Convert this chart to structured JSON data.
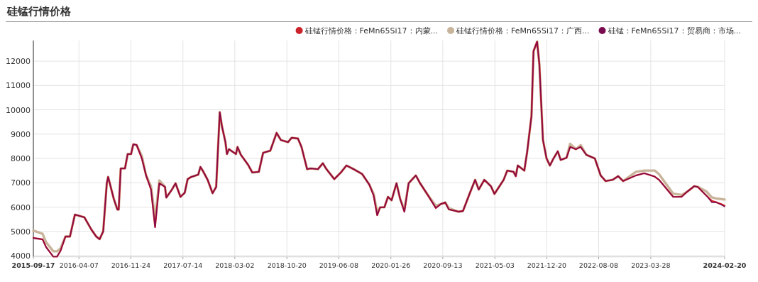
{
  "chart_data": {
    "type": "line",
    "title": "硅锰行情价格",
    "x": [
      "2015-09-17",
      "2015-10-28",
      "2015-11-13",
      "2015-12-15",
      "2015-12-31",
      "2016-01-16",
      "2016-02-07",
      "2016-02-27",
      "2016-03-20",
      "2016-05-01",
      "2016-06-01",
      "2016-06-23",
      "2016-07-08",
      "2016-07-24",
      "2016-08-09",
      "2016-08-15",
      "2016-09-09",
      "2016-09-25",
      "2016-10-01",
      "2016-10-10",
      "2016-10-29",
      "2016-11-10",
      "2016-11-25",
      "2016-12-05",
      "2016-12-20",
      "2017-01-12",
      "2017-01-31",
      "2017-02-22",
      "2017-03-12",
      "2017-03-31",
      "2017-04-25",
      "2017-05-01",
      "2017-05-26",
      "2017-06-11",
      "2017-07-03",
      "2017-07-22",
      "2017-08-04",
      "2017-08-20",
      "2017-09-20",
      "2017-09-30",
      "2017-10-10",
      "2017-11-01",
      "2017-11-23",
      "2017-12-09",
      "2017-12-25",
      "2018-01-04",
      "2018-01-19",
      "2018-01-26",
      "2018-02-04",
      "2018-03-07",
      "2018-03-14",
      "2018-03-29",
      "2018-04-30",
      "2018-05-19",
      "2018-06-17",
      "2018-07-06",
      "2018-08-07",
      "2018-09-04",
      "2018-09-23",
      "2018-10-25",
      "2018-11-10",
      "2018-12-08",
      "2018-12-24",
      "2019-01-18",
      "2019-02-03",
      "2019-03-07",
      "2019-03-29",
      "2019-04-14",
      "2019-05-19",
      "2019-06-17",
      "2019-07-12",
      "2019-08-13",
      "2019-09-20",
      "2019-10-22",
      "2019-11-10",
      "2019-11-26",
      "2019-12-09",
      "2019-12-28",
      "2020-01-13",
      "2020-01-29",
      "2020-02-20",
      "2020-03-07",
      "2020-03-26",
      "2020-04-14",
      "2020-05-16",
      "2020-06-04",
      "2020-07-03",
      "2020-08-13",
      "2020-09-05",
      "2020-09-24",
      "2020-10-10",
      "2020-11-23",
      "2020-12-12",
      "2021-01-10",
      "2021-02-04",
      "2021-02-20",
      "2021-03-17",
      "2021-04-15",
      "2021-05-01",
      "2021-06-11",
      "2021-06-27",
      "2021-07-25",
      "2021-08-04",
      "2021-08-13",
      "2021-09-11",
      "2021-09-24",
      "2021-10-13",
      "2021-10-22",
      "2021-11-07",
      "2021-11-17",
      "2021-12-03",
      "2021-12-19",
      "2022-01-03",
      "2022-01-19",
      "2022-02-07",
      "2022-02-20",
      "2022-03-18",
      "2022-04-03",
      "2022-04-29",
      "2022-05-20",
      "2022-06-14",
      "2022-07-22",
      "2022-08-17",
      "2022-09-08",
      "2022-10-09",
      "2022-11-03",
      "2022-11-25",
      "2023-01-21",
      "2023-02-27",
      "2023-04-15",
      "2023-05-04",
      "2023-07-06",
      "2023-08-12",
      "2023-09-06",
      "2023-10-08",
      "2023-10-23",
      "2023-11-30",
      "2023-12-25",
      "2024-01-16",
      "2024-02-10",
      "2024-02-20"
    ],
    "series": [
      {
        "name": "硅锰行情价格：FeMn65Si17：内蒙...",
        "color": "#cc2229",
        "values": [
          4730,
          4670,
          4350,
          3960,
          3960,
          4200,
          4790,
          4790,
          5690,
          5580,
          5080,
          4790,
          4680,
          5000,
          6980,
          7240,
          6340,
          5900,
          5900,
          7590,
          7590,
          8180,
          8180,
          8580,
          8550,
          8000,
          7300,
          6720,
          5170,
          6980,
          6830,
          6390,
          6720,
          6980,
          6420,
          6590,
          7150,
          7240,
          7330,
          7650,
          7500,
          7120,
          6570,
          6830,
          9900,
          9310,
          8680,
          8180,
          8380,
          8180,
          8470,
          8150,
          7740,
          7420,
          7450,
          8230,
          8320,
          9050,
          8760,
          8670,
          8850,
          8820,
          8470,
          7560,
          7590,
          7560,
          7800,
          7560,
          7150,
          7420,
          7710,
          7560,
          7360,
          6920,
          6480,
          5660,
          5990,
          5990,
          6420,
          6280,
          6980,
          6340,
          5810,
          6980,
          7300,
          6980,
          6570,
          5960,
          6130,
          6190,
          5900,
          5810,
          5840,
          6540,
          7120,
          6720,
          7120,
          6860,
          6540,
          7120,
          7500,
          7450,
          7270,
          7710,
          7500,
          8290,
          9750,
          12410,
          12800,
          11880,
          8760,
          8000,
          7710,
          8000,
          8290,
          7940,
          8030,
          8470,
          8380,
          8470,
          8150,
          8000,
          7300,
          7070,
          7120,
          7270,
          7070,
          7300,
          7390,
          7250,
          7120,
          6420,
          6420,
          6630,
          6860,
          6830,
          6480,
          6250,
          6190,
          6100,
          6050
        ]
      },
      {
        "name": "硅锰行情价格：FeMn65Si17：广西...",
        "color": "#c8b49a",
        "values": [
          5030,
          4900,
          4550,
          4180,
          4180,
          4300,
          4790,
          4790,
          5690,
          5580,
          5080,
          4790,
          4680,
          5000,
          6980,
          7240,
          6340,
          5900,
          5900,
          7590,
          7590,
          8180,
          8180,
          8580,
          8550,
          8100,
          7300,
          6850,
          5500,
          7100,
          6830,
          6390,
          6720,
          6980,
          6420,
          6590,
          7150,
          7240,
          7330,
          7650,
          7500,
          7120,
          6570,
          6830,
          9900,
          9310,
          8680,
          8180,
          8380,
          8180,
          8470,
          8150,
          7740,
          7420,
          7450,
          8230,
          8320,
          9050,
          8760,
          8670,
          8850,
          8820,
          8470,
          7560,
          7590,
          7560,
          7800,
          7560,
          7150,
          7420,
          7710,
          7560,
          7360,
          6920,
          6550,
          5780,
          5990,
          5990,
          6420,
          6280,
          6980,
          6340,
          5900,
          6980,
          7300,
          6980,
          6570,
          6050,
          6130,
          6190,
          5950,
          5810,
          5840,
          6540,
          7120,
          6720,
          7120,
          6860,
          6540,
          7120,
          7500,
          7450,
          7270,
          7710,
          7500,
          8290,
          9750,
          12410,
          12800,
          11880,
          8760,
          8000,
          7710,
          8000,
          8290,
          7940,
          8030,
          8600,
          8380,
          8550,
          8150,
          8000,
          7300,
          7070,
          7120,
          7270,
          7070,
          7450,
          7500,
          7500,
          7350,
          6550,
          6500,
          6630,
          6860,
          6830,
          6650,
          6400,
          6350,
          6320,
          6310
        ]
      },
      {
        "name": "硅锰：FeMn65Si17：贸易商：市场...",
        "color": "#7a0a4e",
        "values": [
          4730,
          4670,
          4350,
          3960,
          3960,
          4200,
          4790,
          4790,
          5690,
          5580,
          5080,
          4790,
          4680,
          5000,
          6980,
          7240,
          6340,
          5900,
          5900,
          7590,
          7590,
          8180,
          8180,
          8580,
          8550,
          8000,
          7300,
          6720,
          5170,
          6980,
          6830,
          6390,
          6720,
          6980,
          6420,
          6590,
          7150,
          7240,
          7330,
          7650,
          7500,
          7120,
          6570,
          6830,
          9900,
          9310,
          8680,
          8180,
          8380,
          8180,
          8470,
          8150,
          7740,
          7420,
          7450,
          8230,
          8320,
          9050,
          8760,
          8670,
          8850,
          8820,
          8470,
          7560,
          7590,
          7560,
          7800,
          7560,
          7150,
          7420,
          7710,
          7560,
          7360,
          6920,
          6480,
          5660,
          5990,
          5990,
          6420,
          6280,
          6980,
          6340,
          5810,
          6980,
          7300,
          6980,
          6570,
          5960,
          6130,
          6190,
          5900,
          5810,
          5840,
          6540,
          7120,
          6720,
          7120,
          6860,
          6540,
          7120,
          7500,
          7450,
          7270,
          7710,
          7500,
          8290,
          9750,
          12410,
          12800,
          11880,
          8760,
          8000,
          7710,
          8000,
          8290,
          7940,
          8030,
          8470,
          8380,
          8470,
          8150,
          8000,
          7300,
          7070,
          7120,
          7270,
          7070,
          7300,
          7390,
          7250,
          7120,
          6420,
          6420,
          6630,
          6860,
          6830,
          6480,
          6190,
          6190,
          6070,
          6020
        ]
      }
    ],
    "xlim": [
      "2015-09-17",
      "2024-02-20"
    ],
    "xticks": [
      "2015-09-17",
      "2016-04-07",
      "2016-11-24",
      "2017-07-14",
      "2018-03-02",
      "2018-10-20",
      "2019-06-08",
      "2020-01-26",
      "2020-09-13",
      "2021-05-03",
      "2021-12-20",
      "2022-08-08",
      "2023-03-28",
      "2024-02-20"
    ],
    "ylim": [
      3950,
      12850
    ],
    "yticks": [
      4000,
      5000,
      6000,
      7000,
      8000,
      9000,
      10000,
      11000,
      12000
    ],
    "grid": true,
    "legend": "top right"
  }
}
